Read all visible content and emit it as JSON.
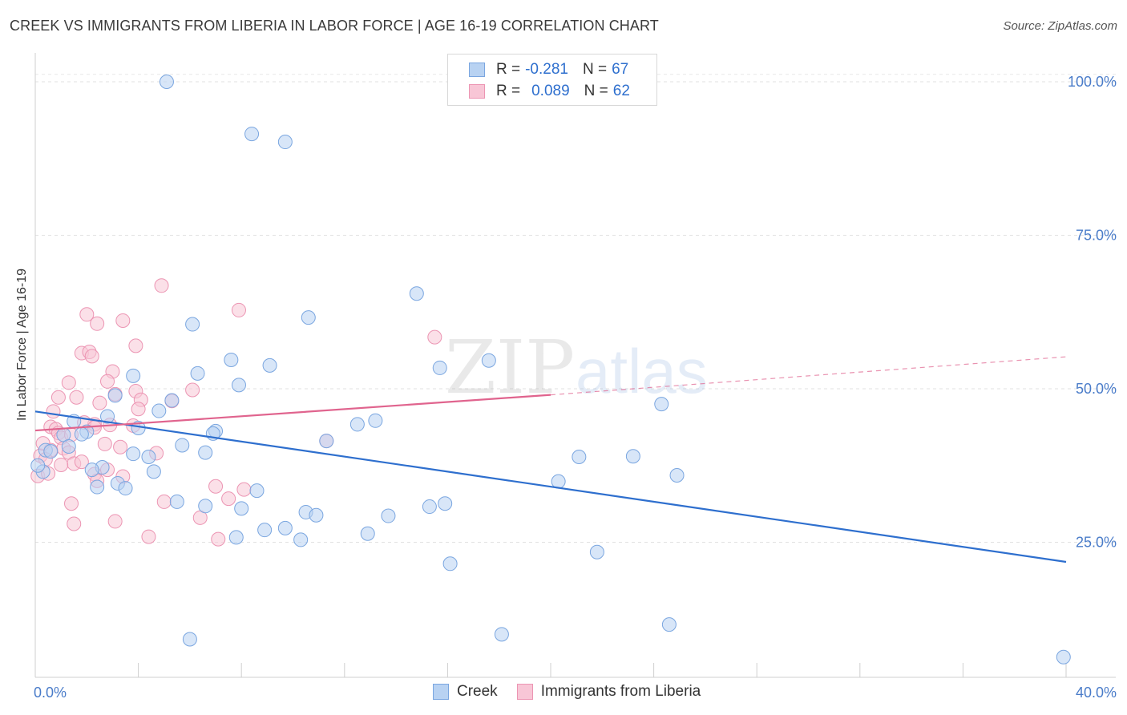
{
  "header": {
    "title": "CREEK VS IMMIGRANTS FROM LIBERIA IN LABOR FORCE | AGE 16-19 CORRELATION CHART",
    "source": "Source: ZipAtlas.com"
  },
  "legend": {
    "rows": [
      {
        "r_label": "R =",
        "r_value": "-0.281",
        "n_label": "N =",
        "n_value": "67"
      },
      {
        "r_label": "R =",
        "r_value": "0.089",
        "n_label": "N =",
        "n_value": "62"
      }
    ],
    "bottom": [
      "Creek",
      "Immigrants from Liberia"
    ]
  },
  "colors": {
    "creek_fill": "#b8d2f2",
    "creek_stroke": "#7aa6e0",
    "creek_line": "#2e6fce",
    "liberia_fill": "#f8c6d6",
    "liberia_stroke": "#ec95b3",
    "liberia_line": "#e0648e",
    "tick_label": "#4a7cc9"
  },
  "watermark": {
    "part1": "ZIP",
    "part2": "atlas"
  },
  "chart_data": {
    "type": "scatter",
    "title": "CREEK VS IMMIGRANTS FROM LIBERIA IN LABOR FORCE | AGE 16-19 CORRELATION CHART",
    "xlabel": "",
    "ylabel": "In Labor Force | Age 16-19",
    "xlim": [
      0,
      40
    ],
    "ylim": [
      3,
      103
    ],
    "x_tick_labels": [
      "0.0%",
      "40.0%"
    ],
    "y_ticks": [
      25,
      50,
      75,
      100
    ],
    "y_tick_labels": [
      "25.0%",
      "50.0%",
      "75.0%",
      "100.0%"
    ],
    "grid": true,
    "legend_position": "top-center",
    "series": [
      {
        "name": "Creek",
        "points": [
          [
            5.1,
            100
          ],
          [
            8.4,
            91.5
          ],
          [
            9.7,
            90.2
          ],
          [
            14.8,
            65.5
          ],
          [
            6.1,
            60.5
          ],
          [
            10.6,
            61.6
          ],
          [
            7.6,
            54.7
          ],
          [
            9.1,
            53.8
          ],
          [
            6.3,
            52.5
          ],
          [
            3.8,
            52.1
          ],
          [
            7.9,
            50.6
          ],
          [
            15.7,
            53.4
          ],
          [
            17.6,
            54.6
          ],
          [
            3.1,
            48.9
          ],
          [
            5.3,
            48.1
          ],
          [
            4.8,
            46.4
          ],
          [
            24.3,
            47.5
          ],
          [
            2.8,
            45.5
          ],
          [
            1.5,
            44.7
          ],
          [
            4.0,
            43.6
          ],
          [
            12.5,
            44.2
          ],
          [
            13.2,
            44.8
          ],
          [
            7.0,
            43.1
          ],
          [
            6.9,
            42.7
          ],
          [
            1.1,
            42.5
          ],
          [
            2.0,
            43.0
          ],
          [
            1.8,
            42.6
          ],
          [
            5.7,
            40.8
          ],
          [
            11.3,
            41.5
          ],
          [
            1.3,
            40.6
          ],
          [
            0.4,
            40.0
          ],
          [
            3.8,
            39.4
          ],
          [
            4.4,
            38.9
          ],
          [
            6.6,
            39.6
          ],
          [
            21.1,
            38.9
          ],
          [
            23.2,
            39.0
          ],
          [
            2.6,
            37.2
          ],
          [
            2.2,
            36.8
          ],
          [
            4.6,
            36.5
          ],
          [
            24.9,
            35.9
          ],
          [
            0.3,
            36.5
          ],
          [
            3.2,
            34.6
          ],
          [
            2.4,
            34.0
          ],
          [
            3.5,
            33.8
          ],
          [
            20.3,
            34.9
          ],
          [
            8.6,
            33.4
          ],
          [
            5.5,
            31.6
          ],
          [
            6.6,
            30.9
          ],
          [
            8.0,
            30.5
          ],
          [
            10.5,
            29.9
          ],
          [
            10.9,
            29.4
          ],
          [
            13.7,
            29.3
          ],
          [
            15.3,
            30.8
          ],
          [
            15.9,
            31.3
          ],
          [
            7.8,
            25.8
          ],
          [
            8.9,
            27.0
          ],
          [
            9.7,
            27.3
          ],
          [
            10.3,
            25.4
          ],
          [
            12.9,
            26.4
          ],
          [
            16.1,
            21.5
          ],
          [
            21.8,
            23.4
          ],
          [
            6.0,
            9.2
          ],
          [
            18.1,
            10.0
          ],
          [
            24.6,
            11.6
          ],
          [
            39.9,
            6.3
          ],
          [
            0.1,
            37.5
          ],
          [
            0.6,
            39.8
          ]
        ]
      },
      {
        "name": "Immigrants from Liberia",
        "points": [
          [
            4.9,
            66.8
          ],
          [
            7.9,
            62.8
          ],
          [
            2.0,
            62.1
          ],
          [
            2.4,
            60.6
          ],
          [
            3.4,
            61.1
          ],
          [
            15.5,
            58.4
          ],
          [
            3.9,
            57.0
          ],
          [
            1.8,
            55.8
          ],
          [
            2.1,
            56.0
          ],
          [
            2.2,
            55.3
          ],
          [
            3.0,
            52.8
          ],
          [
            2.8,
            51.2
          ],
          [
            1.3,
            51.0
          ],
          [
            3.9,
            49.6
          ],
          [
            6.1,
            49.8
          ],
          [
            0.9,
            48.6
          ],
          [
            1.6,
            48.6
          ],
          [
            4.1,
            48.2
          ],
          [
            5.3,
            48.0
          ],
          [
            3.1,
            49.1
          ],
          [
            2.5,
            47.7
          ],
          [
            4.0,
            46.7
          ],
          [
            0.7,
            46.3
          ],
          [
            2.3,
            44.2
          ],
          [
            0.6,
            43.8
          ],
          [
            0.8,
            43.4
          ],
          [
            2.9,
            44.1
          ],
          [
            0.9,
            42.8
          ],
          [
            1.0,
            42.0
          ],
          [
            1.4,
            42.5
          ],
          [
            11.3,
            41.5
          ],
          [
            2.7,
            41.0
          ],
          [
            3.3,
            40.5
          ],
          [
            1.1,
            40.3
          ],
          [
            0.6,
            40.0
          ],
          [
            1.3,
            39.6
          ],
          [
            4.7,
            39.5
          ],
          [
            0.2,
            39.1
          ],
          [
            0.4,
            38.5
          ],
          [
            1.5,
            37.8
          ],
          [
            1.8,
            38.1
          ],
          [
            1.0,
            37.6
          ],
          [
            2.8,
            36.8
          ],
          [
            3.4,
            35.7
          ],
          [
            2.3,
            36.1
          ],
          [
            2.4,
            35.0
          ],
          [
            0.1,
            35.8
          ],
          [
            8.1,
            33.6
          ],
          [
            7.0,
            34.1
          ],
          [
            5.0,
            31.6
          ],
          [
            1.4,
            31.3
          ],
          [
            7.5,
            32.1
          ],
          [
            6.4,
            29.0
          ],
          [
            1.5,
            28.0
          ],
          [
            3.1,
            28.4
          ],
          [
            4.4,
            25.9
          ],
          [
            7.1,
            25.5
          ],
          [
            1.9,
            44.5
          ],
          [
            3.8,
            44.0
          ],
          [
            0.3,
            41.1
          ],
          [
            0.5,
            36.2
          ],
          [
            2.3,
            43.7
          ]
        ]
      }
    ],
    "trend_lines": [
      {
        "series": "Creek",
        "x": [
          0,
          40
        ],
        "y": [
          46.3,
          21.8
        ]
      },
      {
        "series": "Immigrants from Liberia",
        "x": [
          0,
          20
        ],
        "y": [
          43.2,
          49.0
        ],
        "dashed_extension_to": [
          40,
          55.2
        ]
      }
    ]
  }
}
